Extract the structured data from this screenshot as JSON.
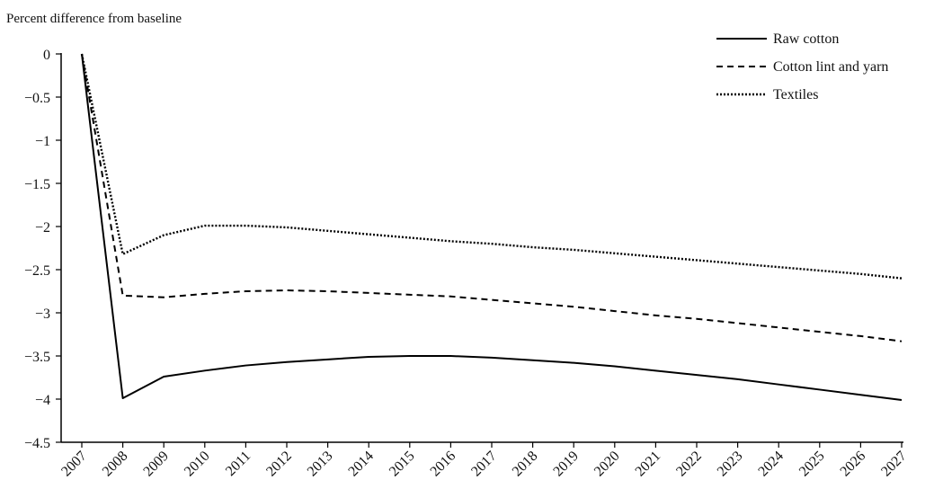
{
  "chart_data": {
    "type": "line",
    "title": "",
    "ylabel": "Percent difference from baseline",
    "xlabel": "",
    "x": [
      "2007",
      "2008",
      "2009",
      "2010",
      "2011",
      "2012",
      "2013",
      "2014",
      "2015",
      "2016",
      "2017",
      "2018",
      "2019",
      "2020",
      "2021",
      "2022",
      "2023",
      "2024",
      "2025",
      "2026",
      "2027"
    ],
    "ylim": [
      -4.5,
      0
    ],
    "yticks": [
      "0",
      "−0.5",
      "−1",
      "−1.5",
      "−2",
      "−2.5",
      "−3",
      "−3.5",
      "−4",
      "−4.5"
    ],
    "grid": false,
    "legend_position": "top-right",
    "series": [
      {
        "name": "Raw cotton",
        "style": "solid",
        "color": "#000000",
        "values": [
          0,
          -3.99,
          -3.74,
          -3.67,
          -3.61,
          -3.57,
          -3.54,
          -3.51,
          -3.5,
          -3.5,
          -3.52,
          -3.55,
          -3.58,
          -3.62,
          -3.67,
          -3.72,
          -3.77,
          -3.83,
          -3.89,
          -3.95,
          -4.01
        ]
      },
      {
        "name": "Cotton lint and yarn",
        "style": "dashed",
        "color": "#000000",
        "values": [
          0,
          -2.8,
          -2.82,
          -2.78,
          -2.75,
          -2.74,
          -2.75,
          -2.77,
          -2.79,
          -2.81,
          -2.85,
          -2.89,
          -2.93,
          -2.98,
          -3.03,
          -3.07,
          -3.12,
          -3.17,
          -3.22,
          -3.27,
          -3.33
        ]
      },
      {
        "name": "Textiles",
        "style": "dotted",
        "color": "#000000",
        "values": [
          0,
          -2.32,
          -2.1,
          -1.99,
          -1.99,
          -2.01,
          -2.05,
          -2.09,
          -2.13,
          -2.17,
          -2.2,
          -2.24,
          -2.27,
          -2.31,
          -2.35,
          -2.39,
          -2.43,
          -2.47,
          -2.51,
          -2.55,
          -2.6
        ]
      }
    ]
  }
}
